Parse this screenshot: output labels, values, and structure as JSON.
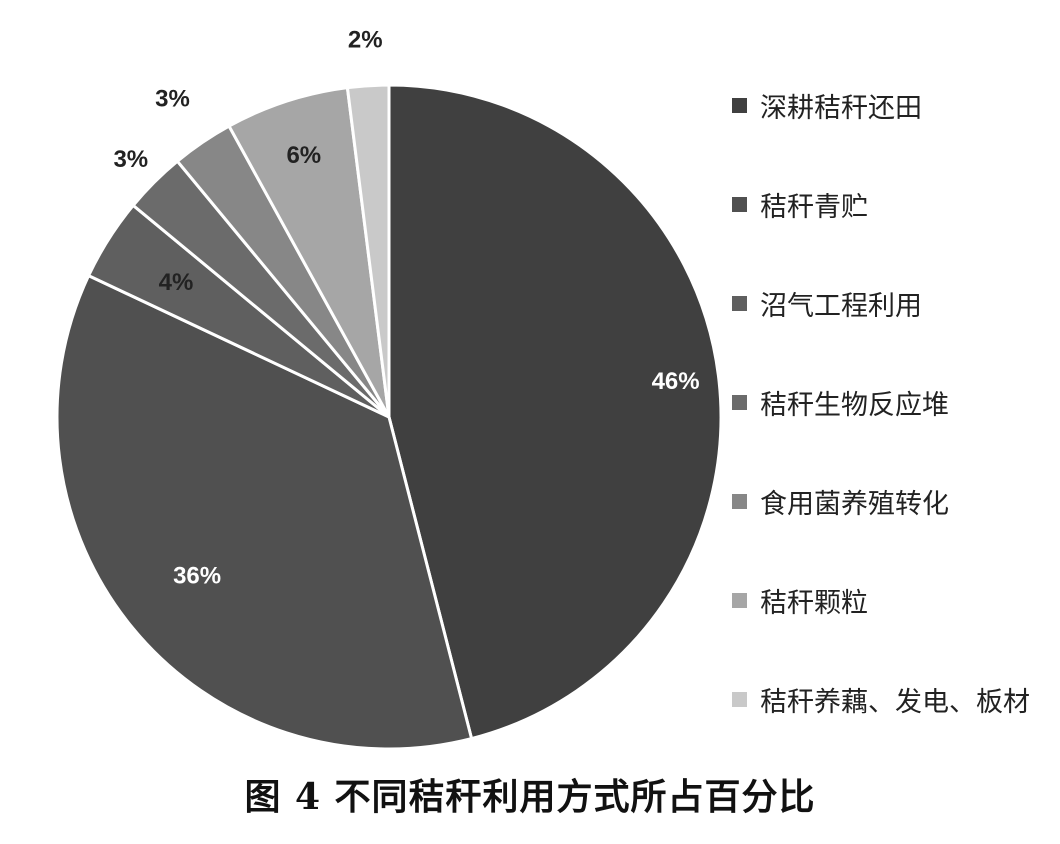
{
  "chart_data": {
    "type": "pie",
    "title": "图 4   不同秸秆利用方式所占百分比",
    "slices": [
      {
        "label": "深耕秸秆还田",
        "value": 46,
        "data_label": "46%",
        "color": "#404040"
      },
      {
        "label": "秸秆青贮",
        "value": 36,
        "data_label": "36%",
        "color": "#505050"
      },
      {
        "label": "沼气工程利用",
        "value": 4,
        "data_label": "4%",
        "color": "#5f5f5f"
      },
      {
        "label": "秸秆生物反应堆",
        "value": 3,
        "data_label": "3%",
        "color": "#6b6b6b"
      },
      {
        "label": "食用菌养殖转化",
        "value": 3,
        "data_label": "3%",
        "color": "#878787"
      },
      {
        "label": "秸秆颗粒",
        "value": 6,
        "data_label": "6%",
        "color": "#a6a6a6"
      },
      {
        "label": "秸秆养藕、发电、板材",
        "value": 2,
        "data_label": "2%",
        "color": "#c9c9c9"
      }
    ],
    "legend_position": "right"
  }
}
